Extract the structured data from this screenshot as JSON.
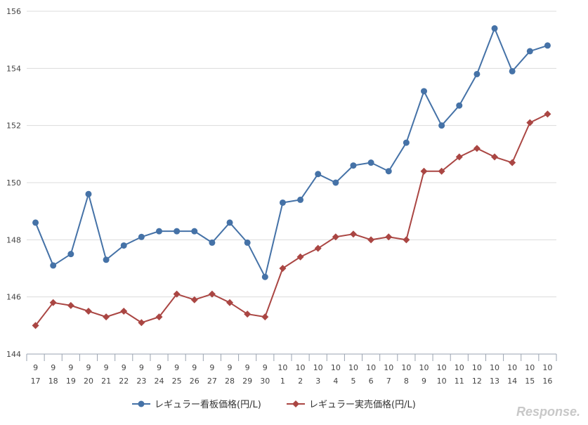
{
  "chart_data": {
    "type": "line",
    "categories": [
      [
        "9",
        "17"
      ],
      [
        "9",
        "18"
      ],
      [
        "9",
        "19"
      ],
      [
        "9",
        "20"
      ],
      [
        "9",
        "21"
      ],
      [
        "9",
        "22"
      ],
      [
        "9",
        "23"
      ],
      [
        "9",
        "24"
      ],
      [
        "9",
        "25"
      ],
      [
        "9",
        "26"
      ],
      [
        "9",
        "27"
      ],
      [
        "9",
        "28"
      ],
      [
        "9",
        "29"
      ],
      [
        "9",
        "30"
      ],
      [
        "10",
        "1"
      ],
      [
        "10",
        "2"
      ],
      [
        "10",
        "3"
      ],
      [
        "10",
        "4"
      ],
      [
        "10",
        "5"
      ],
      [
        "10",
        "6"
      ],
      [
        "10",
        "7"
      ],
      [
        "10",
        "8"
      ],
      [
        "10",
        "9"
      ],
      [
        "10",
        "10"
      ],
      [
        "10",
        "11"
      ],
      [
        "10",
        "12"
      ],
      [
        "10",
        "13"
      ],
      [
        "10",
        "14"
      ],
      [
        "10",
        "15"
      ],
      [
        "10",
        "16"
      ]
    ],
    "series": [
      {
        "name": "レギュラー看板価格(円/L)",
        "color": "#4572a7",
        "marker": "circle",
        "values": [
          148.6,
          147.1,
          147.5,
          149.6,
          147.3,
          147.8,
          148.1,
          148.3,
          148.3,
          148.3,
          147.9,
          148.6,
          147.9,
          146.7,
          149.3,
          149.4,
          150.3,
          150.0,
          150.6,
          150.7,
          150.4,
          151.4,
          153.2,
          152.0,
          152.7,
          153.8,
          155.4,
          153.9,
          154.6,
          154.8
        ]
      },
      {
        "name": "レギュラー実売価格(円/L)",
        "color": "#aa4643",
        "marker": "diamond",
        "values": [
          145.0,
          145.8,
          145.7,
          145.5,
          145.3,
          145.5,
          145.1,
          145.3,
          146.1,
          145.9,
          146.1,
          145.8,
          145.4,
          145.3,
          147.0,
          147.4,
          147.7,
          148.1,
          148.2,
          148.0,
          148.1,
          148.0,
          150.4,
          150.4,
          150.9,
          151.2,
          150.9,
          150.7,
          152.1,
          152.4
        ]
      }
    ],
    "yticks": [
      144,
      146,
      148,
      150,
      152,
      154,
      156
    ],
    "ylim": [
      144,
      156
    ],
    "grid": true,
    "legend_position": "bottom-center"
  },
  "watermark": {
    "text": "Response."
  }
}
